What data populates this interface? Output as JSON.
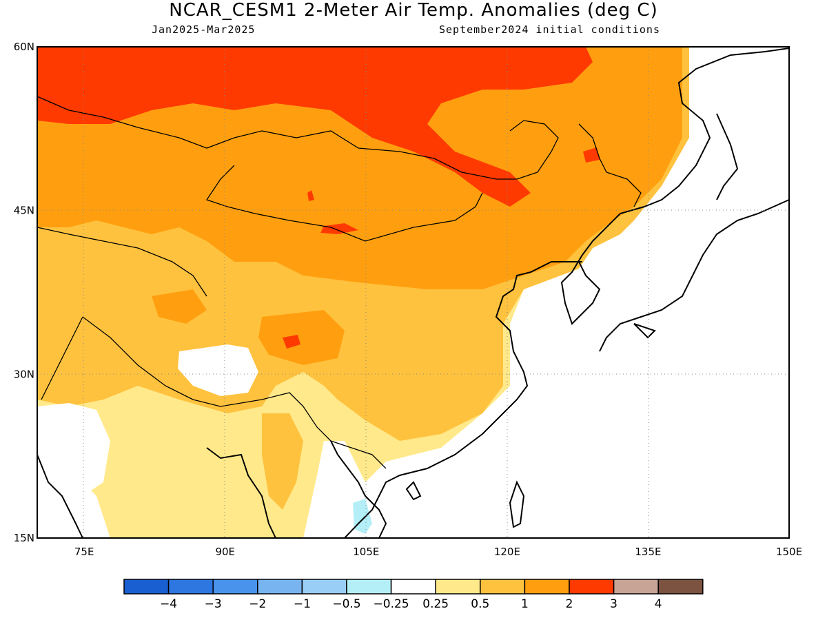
{
  "title": "NCAR_CESM1 2-Meter Air Temp. Anomalies (deg C)",
  "subtitle_left": "Jan2025-Mar2025",
  "subtitle_right": "September2024 initial conditions",
  "map": {
    "lon_range": [
      70,
      150
    ],
    "lat_range": [
      15,
      60
    ],
    "lat_ticks": [
      {
        "value": 60,
        "label": "60N"
      },
      {
        "value": 45,
        "label": "45N"
      },
      {
        "value": 30,
        "label": "30N"
      },
      {
        "value": 15,
        "label": "15N"
      }
    ],
    "lon_ticks": [
      {
        "value": 75,
        "label": "75E"
      },
      {
        "value": 90,
        "label": "90E"
      },
      {
        "value": 105,
        "label": "105E"
      },
      {
        "value": 120,
        "label": "120E"
      },
      {
        "value": 135,
        "label": "135E"
      },
      {
        "value": 150,
        "label": "150E"
      }
    ],
    "grid": "dotted"
  },
  "colorbar": {
    "colors": [
      "#1a5fd2",
      "#2e76e0",
      "#4a93ec",
      "#78b4f0",
      "#99cef6",
      "#b4eff8",
      "#ffffff",
      "#ffe98a",
      "#ffc23e",
      "#ff9f0f",
      "#ff3a00",
      "#c8a496",
      "#7c5240"
    ],
    "labels": [
      "−4",
      "−3",
      "−2",
      "−1",
      "−0.5",
      "−0.25",
      "0.25",
      "0.5",
      "1",
      "2",
      "3",
      "4"
    ]
  }
}
